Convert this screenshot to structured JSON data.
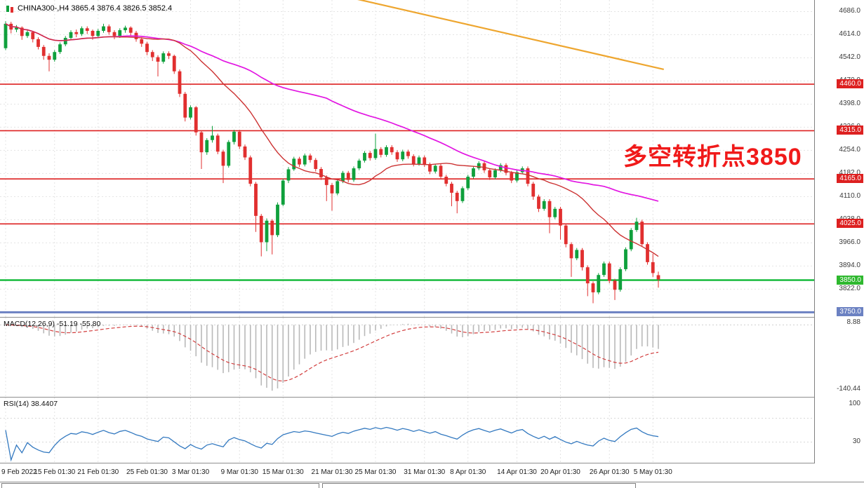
{
  "header": {
    "symbol_line": "CHINA300-,H4 3865.4 3876.4 3826.5 3852.4"
  },
  "annotation": {
    "text": "多空转折点3850",
    "color": "#f01a1a"
  },
  "macd_panel": {
    "label": "MACD(12,26,9) -51.19 -55.80",
    "axis_max": "8.88",
    "axis_min": "-140.44"
  },
  "rsi_panel": {
    "label": "RSI(14) 38.4407",
    "axis_top": "100",
    "axis_level": "30"
  },
  "price_scale": {
    "ticks": [
      4686,
      4614,
      4542,
      4470,
      4398,
      4326,
      4254,
      4182,
      4110,
      4038,
      3966,
      3894,
      3822
    ],
    "badges": [
      {
        "price": 4460,
        "label": "4460.0",
        "color": "#dd2020"
      },
      {
        "price": 4315,
        "label": "4315.0",
        "color": "#dd2020"
      },
      {
        "price": 4165,
        "label": "4165.0",
        "color": "#dd2020"
      },
      {
        "price": 4025,
        "label": "4025.0",
        "color": "#dd2020"
      },
      {
        "price": 3850,
        "label": "3850.0",
        "color": "#2eb82e"
      },
      {
        "price": 3750,
        "label": "3750.0",
        "color": "#6b81c2"
      }
    ]
  },
  "x_axis": {
    "labels": [
      {
        "text": "9 Feb 2022",
        "i": 0
      },
      {
        "text": "15 Feb 01:30",
        "i": 9
      },
      {
        "text": "21 Feb 01:30",
        "i": 17
      },
      {
        "text": "25 Feb 01:30",
        "i": 26
      },
      {
        "text": "3 Mar 01:30",
        "i": 34
      },
      {
        "text": "9 Mar 01:30",
        "i": 43
      },
      {
        "text": "15 Mar 01:30",
        "i": 51
      },
      {
        "text": "21 Mar 01:30",
        "i": 60
      },
      {
        "text": "25 Mar 01:30",
        "i": 68
      },
      {
        "text": "31 Mar 01:30",
        "i": 77
      },
      {
        "text": "8 Apr 01:30",
        "i": 85
      },
      {
        "text": "14 Apr 01:30",
        "i": 94
      },
      {
        "text": "20 Apr 01:30",
        "i": 102
      },
      {
        "text": "26 Apr 01:30",
        "i": 111
      },
      {
        "text": "5 May 01:30",
        "i": 119
      }
    ]
  },
  "bottom_tabs": [
    {},
    {}
  ],
  "chart_data": {
    "type": "candlestick",
    "symbol": "CHINA300-",
    "timeframe": "H4",
    "current_bar": {
      "open": 3865.4,
      "high": 3876.4,
      "low": 3826.5,
      "close": 3852.4
    },
    "price_range": [
      3742,
      4722
    ],
    "colors": {
      "up": "#0fa03c",
      "down": "#e12f2f",
      "grid": "#e4e4e4"
    },
    "hlines": [
      {
        "price": 4460,
        "color": "#dd2020",
        "width": 1.6
      },
      {
        "price": 4315,
        "color": "#dd2020",
        "width": 1.6
      },
      {
        "price": 4165,
        "color": "#dd2020",
        "width": 1.6
      },
      {
        "price": 4025,
        "color": "#dd2020",
        "width": 1.6
      },
      {
        "price": 3850,
        "color": "#00b42a",
        "width": 2.2
      },
      {
        "price": 3750,
        "color": "#6b81c2",
        "width": 3
      }
    ],
    "trendline": {
      "i1": 64,
      "p1": 4727,
      "i2": 121,
      "p2": 4506,
      "color": "#eea62f"
    },
    "ma_fast": {
      "period": 21,
      "color": "#cc3333"
    },
    "ma_slow": {
      "period": 60,
      "color": "#e216e2"
    },
    "macd": {
      "fast": 12,
      "slow": 26,
      "signal": 9,
      "value": -51.19,
      "signal_value": -55.8,
      "hist_color": "#b9b9b9",
      "signal_color": "#d23f3f"
    },
    "rsi": {
      "period": 14,
      "value": 38.4407,
      "color": "#3379c0",
      "levels": [
        70,
        30
      ]
    },
    "ohlc": [
      [
        4572,
        4656,
        4566,
        4648
      ],
      [
        4648,
        4654,
        4618,
        4630
      ],
      [
        4630,
        4644,
        4622,
        4636
      ],
      [
        4636,
        4640,
        4598,
        4610
      ],
      [
        4610,
        4630,
        4604,
        4622
      ],
      [
        4622,
        4626,
        4590,
        4600
      ],
      [
        4600,
        4606,
        4568,
        4576
      ],
      [
        4576,
        4582,
        4536,
        4548
      ],
      [
        4548,
        4556,
        4500,
        4536
      ],
      [
        4536,
        4566,
        4530,
        4560
      ],
      [
        4560,
        4590,
        4554,
        4584
      ],
      [
        4584,
        4610,
        4578,
        4604
      ],
      [
        4604,
        4628,
        4598,
        4622
      ],
      [
        4622,
        4630,
        4606,
        4616
      ],
      [
        4616,
        4640,
        4610,
        4634
      ],
      [
        4634,
        4640,
        4616,
        4626
      ],
      [
        4626,
        4630,
        4598,
        4610
      ],
      [
        4610,
        4632,
        4604,
        4626
      ],
      [
        4626,
        4648,
        4620,
        4640
      ],
      [
        4640,
        4646,
        4614,
        4622
      ],
      [
        4622,
        4628,
        4600,
        4610
      ],
      [
        4610,
        4634,
        4604,
        4628
      ],
      [
        4628,
        4642,
        4620,
        4636
      ],
      [
        4636,
        4640,
        4612,
        4620
      ],
      [
        4620,
        4626,
        4592,
        4600
      ],
      [
        4600,
        4606,
        4576,
        4586
      ],
      [
        4586,
        4592,
        4550,
        4560
      ],
      [
        4560,
        4566,
        4532,
        4544
      ],
      [
        4544,
        4550,
        4484,
        4530
      ],
      [
        4530,
        4562,
        4524,
        4556
      ],
      [
        4556,
        4562,
        4538,
        4548
      ],
      [
        4548,
        4552,
        4492,
        4500
      ],
      [
        4500,
        4506,
        4420,
        4430
      ],
      [
        4430,
        4436,
        4344,
        4356
      ],
      [
        4356,
        4394,
        4350,
        4388
      ],
      [
        4388,
        4392,
        4300,
        4310
      ],
      [
        4310,
        4316,
        4196,
        4248
      ],
      [
        4248,
        4292,
        4240,
        4286
      ],
      [
        4286,
        4330,
        4278,
        4300
      ],
      [
        4300,
        4306,
        4242,
        4250
      ],
      [
        4250,
        4256,
        4152,
        4206
      ],
      [
        4206,
        4286,
        4200,
        4280
      ],
      [
        4280,
        4318,
        4272,
        4312
      ],
      [
        4312,
        4318,
        4258,
        4266
      ],
      [
        4266,
        4272,
        4224,
        4232
      ],
      [
        4232,
        4238,
        4142,
        4150
      ],
      [
        4150,
        4156,
        4000,
        4050
      ],
      [
        4050,
        4056,
        3924,
        3968
      ],
      [
        3968,
        4042,
        3940,
        4035
      ],
      [
        4035,
        4040,
        3930,
        3990
      ],
      [
        3990,
        4092,
        3984,
        4085
      ],
      [
        4085,
        4166,
        4080,
        4160
      ],
      [
        4160,
        4202,
        4152,
        4195
      ],
      [
        4195,
        4234,
        4190,
        4228
      ],
      [
        4228,
        4234,
        4202,
        4210
      ],
      [
        4210,
        4244,
        4204,
        4238
      ],
      [
        4238,
        4244,
        4216,
        4224
      ],
      [
        4224,
        4230,
        4188,
        4196
      ],
      [
        4196,
        4202,
        4162,
        4170
      ],
      [
        4170,
        4176,
        4096,
        4146
      ],
      [
        4146,
        4152,
        4066,
        4120
      ],
      [
        4120,
        4164,
        4114,
        4158
      ],
      [
        4158,
        4190,
        4152,
        4184
      ],
      [
        4184,
        4190,
        4154,
        4162
      ],
      [
        4162,
        4204,
        4156,
        4198
      ],
      [
        4198,
        4228,
        4192,
        4222
      ],
      [
        4222,
        4252,
        4216,
        4246
      ],
      [
        4246,
        4252,
        4222,
        4230
      ],
      [
        4230,
        4306,
        4224,
        4258
      ],
      [
        4258,
        4264,
        4232,
        4240
      ],
      [
        4240,
        4270,
        4234,
        4264
      ],
      [
        4264,
        4270,
        4240,
        4248
      ],
      [
        4248,
        4254,
        4218,
        4226
      ],
      [
        4226,
        4256,
        4220,
        4250
      ],
      [
        4250,
        4256,
        4228,
        4236
      ],
      [
        4236,
        4242,
        4204,
        4212
      ],
      [
        4212,
        4238,
        4206,
        4232
      ],
      [
        4232,
        4238,
        4202,
        4210
      ],
      [
        4210,
        4216,
        4180,
        4188
      ],
      [
        4188,
        4212,
        4182,
        4206
      ],
      [
        4206,
        4212,
        4164,
        4172
      ],
      [
        4172,
        4178,
        4142,
        4150
      ],
      [
        4150,
        4156,
        4080,
        4122
      ],
      [
        4122,
        4128,
        4058,
        4096
      ],
      [
        4096,
        4142,
        4090,
        4136
      ],
      [
        4136,
        4178,
        4130,
        4172
      ],
      [
        4172,
        4204,
        4166,
        4198
      ],
      [
        4198,
        4220,
        4192,
        4214
      ],
      [
        4214,
        4220,
        4184,
        4192
      ],
      [
        4192,
        4198,
        4162,
        4170
      ],
      [
        4170,
        4198,
        4164,
        4192
      ],
      [
        4192,
        4214,
        4186,
        4208
      ],
      [
        4208,
        4214,
        4176,
        4184
      ],
      [
        4184,
        4190,
        4152,
        4160
      ],
      [
        4160,
        4192,
        4154,
        4186
      ],
      [
        4186,
        4204,
        4180,
        4198
      ],
      [
        4198,
        4204,
        4142,
        4150
      ],
      [
        4150,
        4156,
        4100,
        4110
      ],
      [
        4110,
        4116,
        4062,
        4072
      ],
      [
        4072,
        4102,
        4066,
        4096
      ],
      [
        4096,
        4102,
        3996,
        4046
      ],
      [
        4046,
        4078,
        4040,
        4072
      ],
      [
        4072,
        4078,
        3976,
        4020
      ],
      [
        4020,
        4026,
        3952,
        3962
      ],
      [
        3962,
        3968,
        3860,
        3918
      ],
      [
        3918,
        3950,
        3912,
        3944
      ],
      [
        3944,
        3950,
        3880,
        3890
      ],
      [
        3890,
        3896,
        3800,
        3840
      ],
      [
        3840,
        3846,
        3778,
        3812
      ],
      [
        3812,
        3872,
        3806,
        3866
      ],
      [
        3866,
        3908,
        3860,
        3902
      ],
      [
        3902,
        3908,
        3840,
        3848
      ],
      [
        3848,
        3854,
        3788,
        3820
      ],
      [
        3820,
        3890,
        3814,
        3884
      ],
      [
        3884,
        3952,
        3878,
        3946
      ],
      [
        3946,
        4012,
        3940,
        4006
      ],
      [
        4006,
        4044,
        4000,
        4032
      ],
      [
        4032,
        4038,
        3954,
        3962
      ],
      [
        3962,
        3968,
        3898,
        3906
      ],
      [
        3906,
        3932,
        3860,
        3872
      ],
      [
        3865.4,
        3876.4,
        3826.5,
        3852.4
      ]
    ]
  }
}
